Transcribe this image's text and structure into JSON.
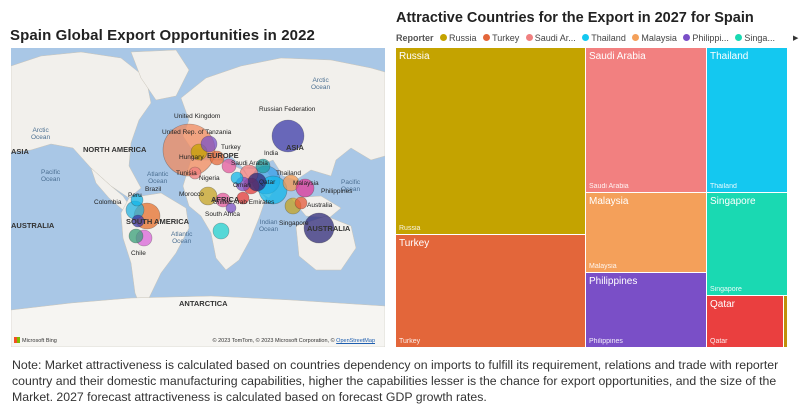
{
  "map": {
    "title": "Spain Global Export Opportunities in 2022",
    "copyright_text": "© 2023 TomTom, © 2023 Microsoft Corporation, ©",
    "copyright_link": "OpenStreetMap",
    "logo_text": "Microsoft Bing",
    "land_color": "#f2f0ec",
    "water_color": "#a9c7e6",
    "labels": {
      "continents": {
        "north_america": "NORTH AMERICA",
        "south_america": "SOUTH AMERICA",
        "asia": "ASIA",
        "africa": "AFRICA",
        "europe": "EUROPE",
        "australia": "AUSTRALIA",
        "antarctica": "ANTARCTICA",
        "asia_left": "ASIA",
        "australia_left": "AUSTRALIA"
      },
      "oceans": {
        "arctic_left": "Arctic\nOcean",
        "arctic_right": "Arctic\nOcean",
        "pacific_left": "Pacific\nOcean",
        "atlantic_north": "Atlantic\nOcean",
        "pacific_right": "Pacific\nOcean",
        "atlantic_south": "Atlantic\nOcean",
        "indian": "Indian\nOcean"
      },
      "countries": {
        "united_kingdom": "United Kingdom",
        "united_rep_tanzania": "United Rep. of Tanzania",
        "russian_federation": "Russian Federation",
        "hungary": "Hungary",
        "turkey": "Turkey",
        "india": "India",
        "saudi_arabia": "Saudi Arabia",
        "tunisia": "Tunisia",
        "nigeria": "Nigeria",
        "qatar": "Qatar",
        "oman": "Oman",
        "thailand": "Thailand",
        "malaysia": "Malaysia",
        "philippines": "Philippines",
        "brazil": "Brazil",
        "peru": "Peru",
        "colombia": "Colombia",
        "morocco": "Morocco",
        "united_arab_emirates": "United Arab Emirates",
        "south_africa": "South Africa",
        "singapore": "Singapore",
        "australia": "Australia",
        "chile": "Chile"
      }
    },
    "bubbles": [
      {
        "country": "Russian Federation",
        "color": "#3a3aa8"
      },
      {
        "country": "United Kingdom",
        "color": "#f08a5d"
      },
      {
        "country": "Hungary",
        "color": "#c7a300"
      },
      {
        "country": "Turkey",
        "color": "#e56a3a"
      },
      {
        "country": "Saudi Arabia",
        "color": "#f27e7e"
      },
      {
        "country": "India",
        "color": "#3aa0e8"
      },
      {
        "country": "Thailand",
        "color": "#12b5e8"
      },
      {
        "country": "Malaysia",
        "color": "#f39a52"
      },
      {
        "country": "Philippines",
        "color": "#7a52c7"
      },
      {
        "country": "Singapore",
        "color": "#19d6b0"
      },
      {
        "country": "Qatar",
        "color": "#e23a3a"
      },
      {
        "country": "Australia",
        "color": "#2d2a7a"
      },
      {
        "country": "Brazil",
        "color": "#e6702c"
      },
      {
        "country": "Colombia",
        "color": "#25b3e0"
      },
      {
        "country": "Chile",
        "color": "#d966d9"
      },
      {
        "country": "Morocco",
        "color": "#c4a324"
      },
      {
        "country": "Nigeria",
        "color": "#e35a9e"
      },
      {
        "country": "South Africa",
        "color": "#20d0d0"
      },
      {
        "country": "Tunisia",
        "color": "#ef7d7d"
      },
      {
        "country": "Oman",
        "color": "#7a52c7"
      }
    ]
  },
  "treemap": {
    "title": "Attractive Countries for the Export in 2027 for Spain",
    "legend_label": "Reporter",
    "legend_items": [
      {
        "name": "Russia",
        "color": "#c4a300"
      },
      {
        "name": "Turkey",
        "color": "#e3663a"
      },
      {
        "name": "Saudi Ar...",
        "color": "#f08080"
      },
      {
        "name": "Thailand",
        "color": "#14c8f0"
      },
      {
        "name": "Malaysia",
        "color": "#f4a05a"
      },
      {
        "name": "Philippi...",
        "color": "#7a4fc7"
      },
      {
        "name": "Singa...",
        "color": "#1ad9b2"
      }
    ],
    "cells": [
      {
        "name": "Russia",
        "sub": "Russia",
        "color": "#c4a300"
      },
      {
        "name": "Turkey",
        "sub": "Turkey",
        "color": "#e3663a"
      },
      {
        "name": "Saudi Arabia",
        "sub": "Saudi Arabia",
        "color": "#f28080"
      },
      {
        "name": "Malaysia",
        "sub": "Malaysia",
        "color": "#f4a05a"
      },
      {
        "name": "Philippines",
        "sub": "Philippines",
        "color": "#7a4fc7"
      },
      {
        "name": "Thailand",
        "sub": "Thailand",
        "color": "#14c8f0"
      },
      {
        "name": "Singapore",
        "sub": "Singapore",
        "color": "#1ad9b2"
      },
      {
        "name": "Qatar",
        "sub": "Qatar",
        "color": "#ea3f3f"
      },
      {
        "name": "",
        "sub": "",
        "color": "#c0900a"
      }
    ]
  },
  "note": "Note: Market attractiveness is calculated based on countries dependency on imports to fulfill its requirement, relations and trade with reporter country and their domestic manufacturing capabilities, higher the capabilities lesser is the chance for export opportunities, and the size of the Market. 2027 forecast attractiveness is calculated based on forecast GDP growth rates."
}
